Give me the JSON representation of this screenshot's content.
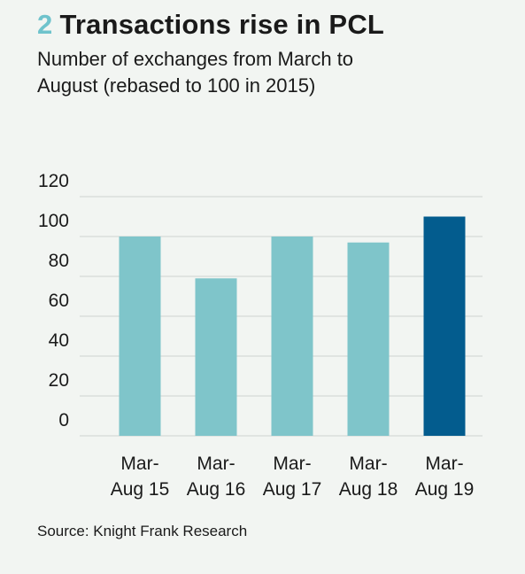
{
  "header": {
    "number": "2",
    "title": "Transactions rise in PCL",
    "subtitle": "Number of exchanges from March to August (rebased to 100 in 2015)"
  },
  "footer": {
    "source": "Source: Knight Frank Research"
  },
  "colors": {
    "bar": "#7fc5ca",
    "highlight": "#035c8e",
    "grid": "#cfd3d0",
    "accent": "#6fc3cc"
  },
  "chart_data": {
    "type": "bar",
    "categories": [
      [
        "Mar-",
        "Aug 15"
      ],
      [
        "Mar-",
        "Aug 16"
      ],
      [
        "Mar-",
        "Aug 17"
      ],
      [
        "Mar-",
        "Aug 18"
      ],
      [
        "Mar-",
        "Aug 19"
      ]
    ],
    "values": [
      100,
      79,
      100,
      97,
      110
    ],
    "highlight_index": 4,
    "yticks": [
      120,
      100,
      80,
      60,
      40,
      20,
      0
    ],
    "ylim": [
      0,
      120
    ],
    "grid": true,
    "title": "Transactions rise in PCL",
    "subtitle": "Number of exchanges from March to August (rebased to 100 in 2015)"
  }
}
